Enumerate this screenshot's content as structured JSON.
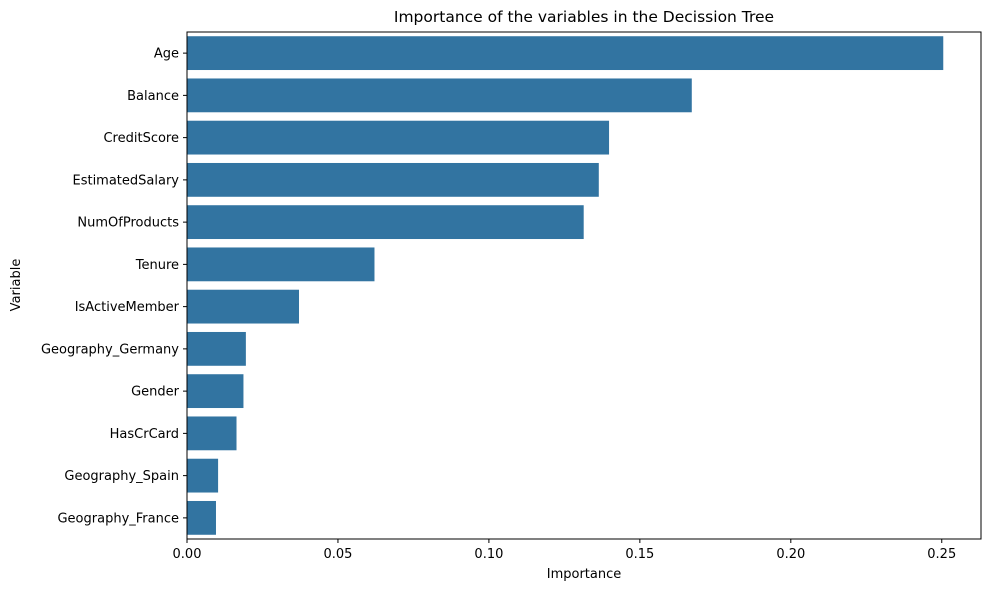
{
  "chart_data": {
    "type": "bar",
    "orientation": "horizontal",
    "title": "Importance of the variables in the Decission Tree",
    "xlabel": "Importance",
    "ylabel": "Variable",
    "categories": [
      "Age",
      "Balance",
      "CreditScore",
      "EstimatedSalary",
      "NumOfProducts",
      "Tenure",
      "IsActiveMember",
      "Geography_Germany",
      "Gender",
      "HasCrCard",
      "Geography_Spain",
      "Geography_France"
    ],
    "values": [
      0.2505,
      0.1672,
      0.1398,
      0.1364,
      0.1314,
      0.0621,
      0.0371,
      0.0195,
      0.0187,
      0.0164,
      0.0103,
      0.0096
    ],
    "xlim": [
      0,
      0.263
    ],
    "xticks": [
      0,
      0.05,
      0.1,
      0.15,
      0.2,
      0.25
    ],
    "xtick_labels": [
      "0.00",
      "0.05",
      "0.10",
      "0.15",
      "0.20",
      "0.25"
    ],
    "grid": false,
    "legend": "none",
    "bar_color": "#3274a1"
  }
}
